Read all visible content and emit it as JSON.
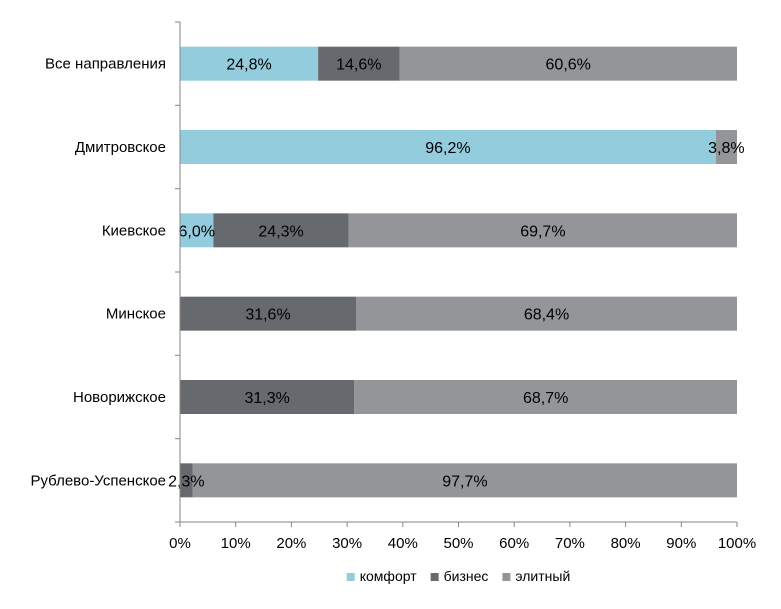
{
  "chart_data": {
    "type": "bar",
    "orientation": "horizontal",
    "stacked": "percent",
    "categories": [
      "Все направления",
      "Дмитровское",
      "Киевское",
      "Минское",
      "Новорижское",
      "Рублево-Успенское"
    ],
    "series": [
      {
        "name": "комфорт",
        "color": "#93CDDD",
        "values": [
          24.8,
          96.2,
          6.0,
          0,
          0,
          0
        ],
        "labels": [
          "24,8%",
          "96,2%",
          "6,0%",
          "",
          "",
          ""
        ]
      },
      {
        "name": "бизнес",
        "color": "#666A6E",
        "values": [
          14.6,
          0,
          24.3,
          31.6,
          31.3,
          2.3
        ],
        "labels": [
          "14,6%",
          "",
          "24,3%",
          "31,6%",
          "31,3%",
          "2,3%"
        ]
      },
      {
        "name": "элитный",
        "color": "#939598",
        "values": [
          60.6,
          3.8,
          69.7,
          68.4,
          68.7,
          97.7
        ],
        "labels": [
          "60,6%",
          "3,8%",
          "69,7%",
          "68,4%",
          "68,7%",
          "97,7%"
        ]
      }
    ],
    "x_ticks": [
      "0%",
      "10%",
      "20%",
      "30%",
      "40%",
      "50%",
      "60%",
      "70%",
      "80%",
      "90%",
      "100%"
    ],
    "xlim": [
      0,
      100
    ],
    "grid": false,
    "legend_position": "bottom"
  }
}
